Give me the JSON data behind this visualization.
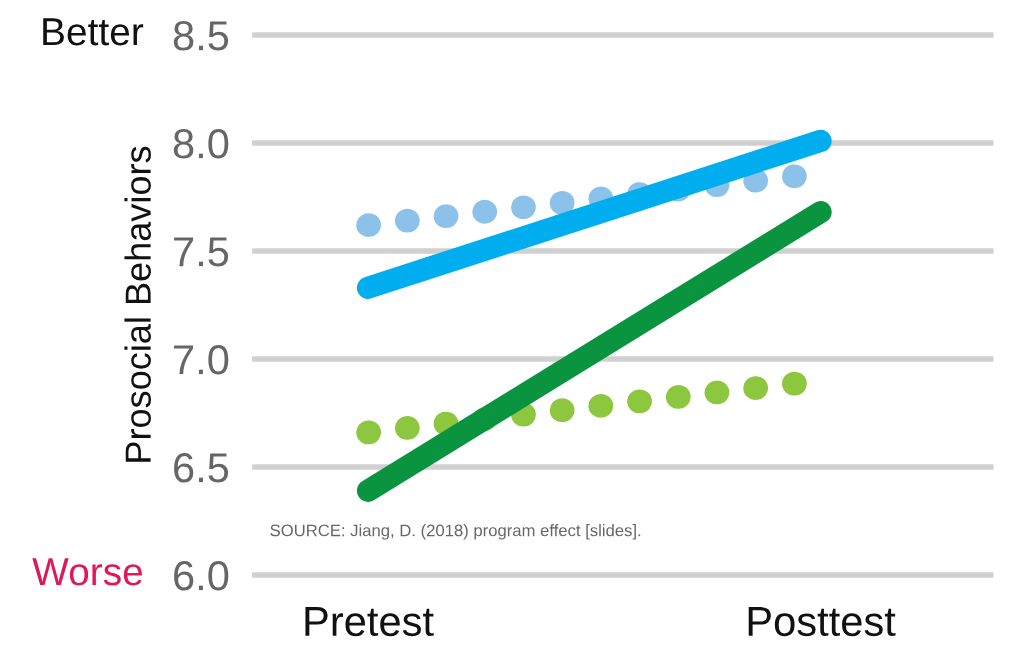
{
  "chart_data": {
    "type": "line",
    "categories": [
      "Pretest",
      "Posttest"
    ],
    "ylabel": "Prosocial Behaviors",
    "series": [
      {
        "color": "#8cc2ea",
        "values": [
          7.62,
          7.86
        ],
        "line_style": "dotted"
      },
      {
        "color": "#00aeef",
        "values": [
          7.33,
          8.01
        ],
        "line_style": "solid"
      },
      {
        "color": "#8dc63f",
        "values": [
          6.66,
          6.9
        ],
        "line_style": "dotted"
      },
      {
        "color": "#0a9440",
        "values": [
          6.39,
          7.68
        ],
        "line_style": "solid"
      }
    ],
    "ylim": [
      6.0,
      8.5
    ],
    "yticks": [
      {
        "value": 6.0,
        "label": "6.0"
      },
      {
        "value": 6.5,
        "label": "6.5"
      },
      {
        "value": 7.0,
        "label": "7.0"
      },
      {
        "value": 7.5,
        "label": "7.5"
      },
      {
        "value": 8.0,
        "label": "8.0"
      },
      {
        "value": 8.5,
        "label": "8.5"
      }
    ],
    "grid": "y",
    "legend": false,
    "annotations": [
      "Better",
      "Worse",
      "SOURCE: Jiang, D. (2018) program effect [slides]."
    ]
  }
}
